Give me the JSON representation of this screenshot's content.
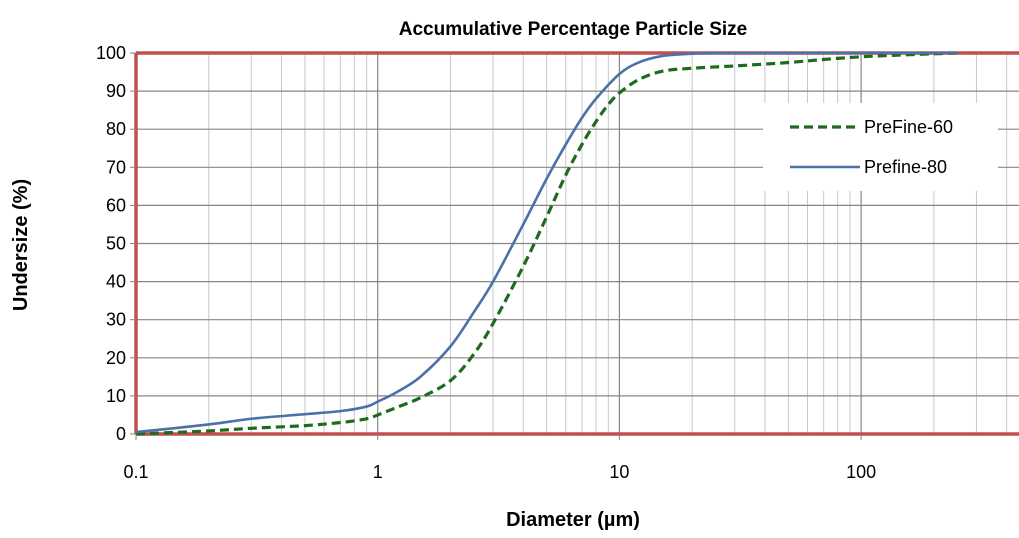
{
  "chart_data": {
    "type": "line",
    "title": "Accumulative Percentage Particle Size",
    "xlabel": "Diameter (µm)",
    "ylabel": "Undersize (%)",
    "x_scale": "log",
    "xlim": [
      0.1,
      450
    ],
    "ylim": [
      0,
      100
    ],
    "x_ticks": [
      0.1,
      1,
      10,
      100
    ],
    "x_tick_labels": [
      "0.1",
      "1",
      "10",
      "100"
    ],
    "y_ticks": [
      0,
      10,
      20,
      30,
      40,
      50,
      60,
      70,
      80,
      90,
      100
    ],
    "y_tick_labels": [
      "0",
      "10",
      "20",
      "30",
      "40",
      "50",
      "60",
      "70",
      "80",
      "90",
      "100"
    ],
    "grid": true,
    "legend_position": "top-right",
    "series": [
      {
        "name": "PreFine-60",
        "color": "#1e6b1e",
        "style": "dashed",
        "x": [
          0.1,
          0.2,
          0.3,
          0.5,
          0.7,
          0.9,
          1.0,
          1.2,
          1.5,
          2.0,
          2.5,
          3.0,
          4.0,
          5.0,
          6.0,
          7.0,
          8.0,
          9.0,
          10,
          12,
          15,
          20,
          30,
          50,
          70,
          100,
          150,
          250
        ],
        "y": [
          0,
          0.8,
          1.5,
          2.2,
          3.0,
          4.0,
          5.0,
          7.0,
          9.5,
          14.0,
          21.0,
          29.0,
          44.0,
          57.0,
          68.0,
          76.0,
          82.0,
          86.5,
          89.5,
          93.0,
          95.2,
          96.0,
          96.6,
          97.5,
          98.3,
          99.0,
          99.5,
          100
        ]
      },
      {
        "name": "Prefine-80",
        "color": "#4a72a8",
        "style": "solid",
        "x": [
          0.1,
          0.2,
          0.3,
          0.5,
          0.7,
          0.9,
          1.0,
          1.2,
          1.5,
          2.0,
          2.5,
          3.0,
          4.0,
          5.0,
          6.0,
          7.0,
          8.0,
          10,
          12,
          15,
          20,
          30,
          50,
          100,
          150,
          250
        ],
        "y": [
          0.5,
          2.5,
          4.0,
          5.2,
          6.0,
          7.2,
          8.5,
          11.0,
          15.0,
          23.0,
          32.0,
          40.0,
          55.0,
          67.0,
          76.0,
          83.0,
          88.0,
          94.5,
          97.5,
          99.2,
          99.8,
          100,
          100,
          100,
          100,
          100
        ]
      }
    ]
  },
  "colors": {
    "plot_border": "#c0504d",
    "grid_major": "#868686",
    "grid_minor": "#c8c8c8"
  }
}
